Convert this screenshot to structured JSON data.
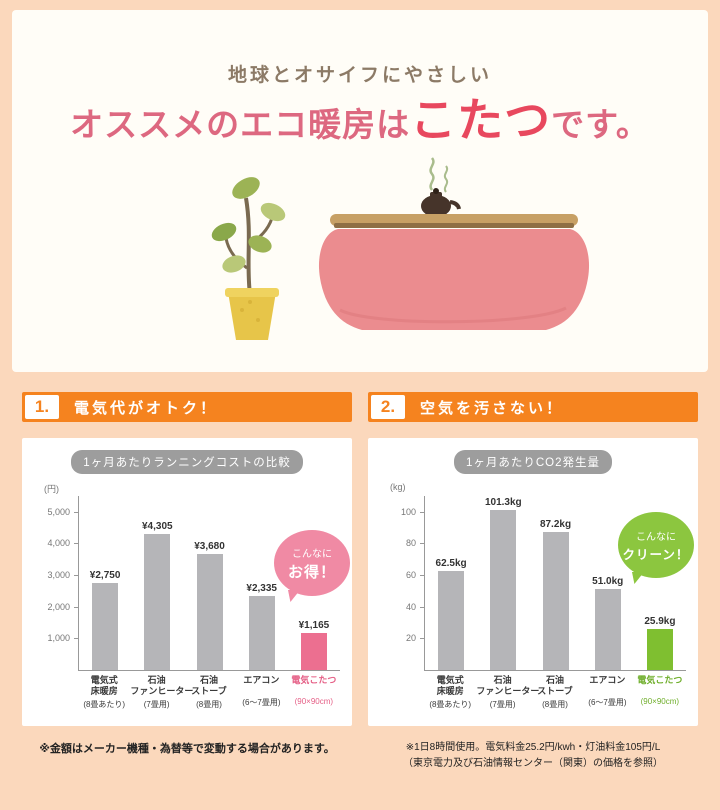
{
  "header": {
    "subtitle": "地球とオサイフにやさしい",
    "title_pre": "オススメのエコ暖房は",
    "title_emph": "こたつ",
    "title_post": "です。"
  },
  "sections": [
    {
      "number": "1.",
      "heading": "電気代がオトク！",
      "bubble_small": "こんなに",
      "bubble_big": "お得！",
      "note": "※金額はメーカー機種・為替等で変動する場合があります。"
    },
    {
      "number": "2.",
      "heading": "空気を汚さない！",
      "bubble_small": "こんなに",
      "bubble_big": "クリーン！",
      "note": "※1日8時間使用。電気料金25.2円/kwh・灯油料金105円/L",
      "note2": "（東京電力及び石油情報センター（関東）の価格を参照）"
    }
  ],
  "chart_data": [
    {
      "type": "bar",
      "title": "1ヶ月あたりランニングコストの比較",
      "unit": "(円)",
      "ylabel": "円",
      "ylim": [
        0,
        5500
      ],
      "yticks": [
        1000,
        2000,
        3000,
        4000,
        5000
      ],
      "ytick_labels": [
        "1,000",
        "2,000",
        "3,000",
        "4,000",
        "5,000"
      ],
      "categories": [
        {
          "name": "電気式\n床暖房",
          "sub": "(8畳あたり)",
          "highlight": false
        },
        {
          "name": "石油\nファンヒーター",
          "sub": "(7畳用)",
          "highlight": false
        },
        {
          "name": "石油\nストーブ",
          "sub": "(8畳用)",
          "highlight": false
        },
        {
          "name": "エアコン",
          "sub": "(6～7畳用)",
          "highlight": false
        },
        {
          "name": "電気こたつ",
          "sub": "(90×90cm)",
          "highlight": true
        }
      ],
      "values": [
        2750,
        4305,
        3680,
        2335,
        1165
      ],
      "value_labels": [
        "¥2,750",
        "¥4,305",
        "¥3,680",
        "¥2,335",
        "¥1,165"
      ],
      "bar_color": "#b5b5b8",
      "highlight_color": "#ec6f90",
      "highlight_label_color": "#e55f86",
      "grid": false,
      "legend": "none"
    },
    {
      "type": "bar",
      "title": "1ヶ月あたりCO2発生量",
      "unit": "(kg)",
      "ylabel": "kg",
      "ylim": [
        0,
        110
      ],
      "yticks": [
        20,
        40,
        60,
        80,
        100
      ],
      "ytick_labels": [
        "20",
        "40",
        "60",
        "80",
        "100"
      ],
      "categories": [
        {
          "name": "電気式\n床暖房",
          "sub": "(8畳あたり)",
          "highlight": false
        },
        {
          "name": "石油\nファンヒーター",
          "sub": "(7畳用)",
          "highlight": false
        },
        {
          "name": "石油\nストーブ",
          "sub": "(8畳用)",
          "highlight": false
        },
        {
          "name": "エアコン",
          "sub": "(6～7畳用)",
          "highlight": false
        },
        {
          "name": "電気こたつ",
          "sub": "(90×90cm)",
          "highlight": true
        }
      ],
      "values": [
        62.5,
        101.3,
        87.2,
        51.0,
        25.9
      ],
      "value_labels": [
        "62.5kg",
        "101.3kg",
        "87.2kg",
        "51.0kg",
        "25.9kg"
      ],
      "bar_color": "#b5b5b8",
      "highlight_color": "#7fbf30",
      "highlight_label_color": "#6fae2b",
      "grid": false,
      "legend": "none"
    }
  ],
  "colors": {
    "background": "#FBD8BC",
    "panel": "#FFFFFF",
    "banner_orange": "#F5831F",
    "title_pink": "#DD6880",
    "title_emphasis": "#E8485E",
    "bubble_pink": "#F08AA4",
    "bubble_green": "#8CC63F"
  }
}
